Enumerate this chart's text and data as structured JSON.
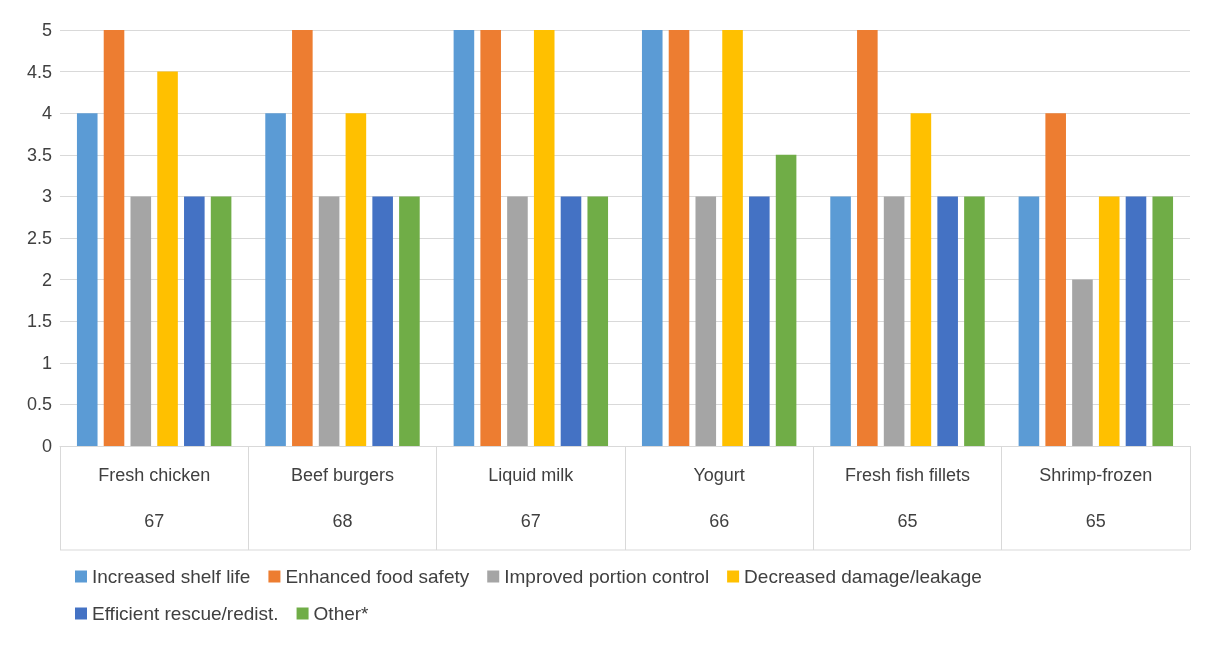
{
  "chart_data": {
    "type": "bar",
    "categories": [
      "Fresh chicken",
      "Beef burgers",
      "Liquid milk",
      "Yogurt",
      "Fresh fish fillets",
      "Shrimp-frozen"
    ],
    "series": [
      {
        "name": "Increased shelf life",
        "color": "#5b9bd5",
        "values": [
          4,
          4,
          5,
          5,
          3,
          3
        ]
      },
      {
        "name": "Enhanced food safety",
        "color": "#ed7d31",
        "values": [
          5,
          5,
          5,
          5,
          5,
          4
        ]
      },
      {
        "name": "Improved portion control",
        "color": "#a5a5a5",
        "values": [
          3,
          3,
          3,
          3,
          3,
          2
        ]
      },
      {
        "name": "Decreased damage/leakage",
        "color": "#ffc000",
        "values": [
          4.5,
          4,
          5,
          5,
          4,
          3
        ]
      },
      {
        "name": "Efficient rescue/redist.",
        "color": "#4472c4",
        "values": [
          3,
          3,
          3,
          3,
          3,
          3
        ]
      },
      {
        "name": "Other*",
        "color": "#70ad47",
        "values": [
          3,
          3,
          3,
          3.5,
          3,
          3
        ]
      }
    ],
    "ylim": [
      0,
      5
    ],
    "yticks": [
      0,
      0.5,
      1,
      1.5,
      2,
      2.5,
      3,
      3.5,
      4,
      4.5,
      5
    ],
    "grid": "y",
    "legend": "bottom",
    "annotations": [
      "67",
      "68",
      "67",
      "66",
      "65",
      "65"
    ]
  }
}
